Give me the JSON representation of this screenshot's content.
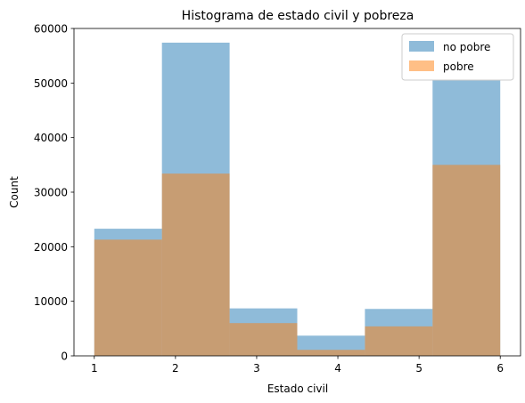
{
  "chart_data": {
    "type": "bar",
    "title": "Histograma de estado civil y pobreza",
    "xlabel": "Estado civil",
    "ylabel": "Count",
    "xlim": [
      0.75,
      6.25
    ],
    "ylim": [
      0,
      60000
    ],
    "xticks": [
      1,
      2,
      3,
      4,
      5,
      6
    ],
    "yticks": [
      0,
      10000,
      20000,
      30000,
      40000,
      50000,
      60000
    ],
    "bin_edges": [
      1.0,
      1.8333,
      2.6667,
      3.5,
      4.3333,
      5.1667,
      6.0
    ],
    "grid": false,
    "legend_position": "top-right",
    "series": [
      {
        "name": "no pobre",
        "color": "#1f77b4",
        "alpha": 0.5,
        "values": [
          23300,
          57400,
          8700,
          3700,
          8600,
          50500
        ]
      },
      {
        "name": "pobre",
        "color": "#ff7f0e",
        "alpha": 0.5,
        "values": [
          21300,
          33400,
          6000,
          1100,
          5400,
          35000
        ]
      }
    ]
  }
}
